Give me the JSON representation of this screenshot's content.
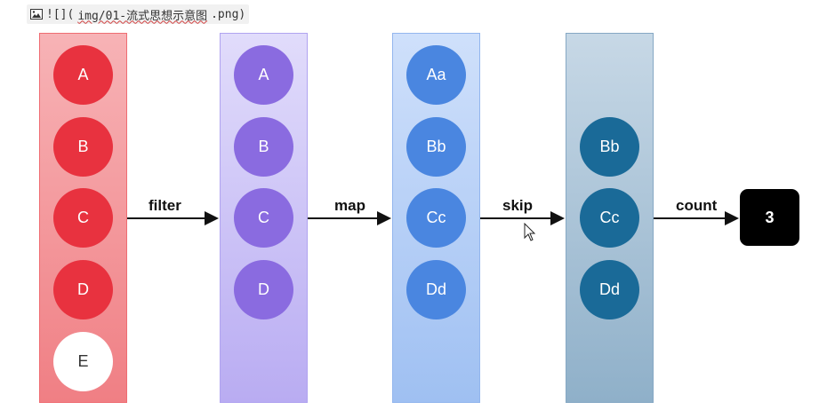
{
  "header": {
    "image_icon": "image-icon",
    "markdown_prefix": "![](",
    "markdown_path": "img/01-流式思想示意图",
    "markdown_suffix": ".png)"
  },
  "diagram": {
    "columns": [
      {
        "items": [
          "A",
          "B",
          "C",
          "D",
          "E"
        ]
      },
      {
        "items": [
          "A",
          "B",
          "C",
          "D"
        ]
      },
      {
        "items": [
          "Aa",
          "Bb",
          "Cc",
          "Dd"
        ]
      },
      {
        "items": [
          "Bb",
          "Cc",
          "Dd"
        ]
      }
    ],
    "operations": [
      "filter",
      "map",
      "skip",
      "count"
    ],
    "result": "3"
  },
  "colors": {
    "red": "#e8323f",
    "purple": "#8a6be0",
    "blue": "#4a86e0",
    "steel": "#1a6a98",
    "result_bg": "#000000"
  },
  "cursor_icon": "mouse-pointer-icon"
}
